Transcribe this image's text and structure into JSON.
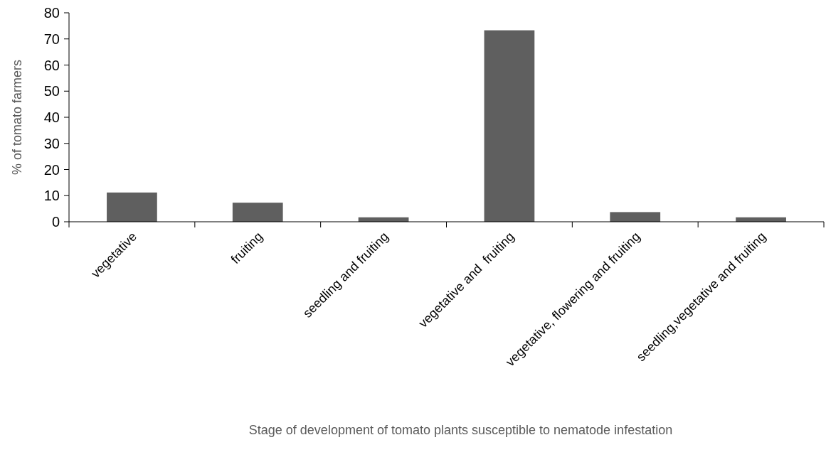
{
  "chart_data": {
    "type": "bar",
    "xlabel": "Stage of development of tomato plants susceptible to nematode infestation",
    "ylabel": "% of tomato farmers",
    "categories": [
      "vegetative",
      "fruiting",
      "seedling and fruiting",
      "vegetative and  fruiting",
      "vegetative, flowering and fruiting",
      "seedling,vegetative and fruiting"
    ],
    "values": [
      11.2,
      7.3,
      1.7,
      73.3,
      3.7,
      1.7
    ],
    "color": "#5f5f5f",
    "ylim": [
      0,
      80
    ],
    "yticks": [
      0,
      10,
      20,
      30,
      40,
      50,
      60,
      70,
      80
    ],
    "grid": false
  }
}
